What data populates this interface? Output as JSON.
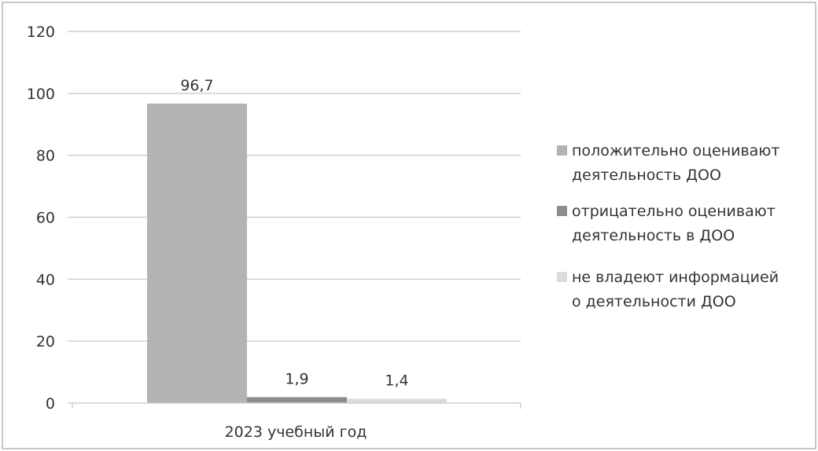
{
  "chart_data": {
    "type": "bar",
    "categories": [
      "2023 учебный год"
    ],
    "series": [
      {
        "name": "положительно оценивают деятельность ДОО",
        "legend_lines": [
          "положительно оценивают",
          "деятельность ДОО"
        ],
        "values": [
          96.7
        ],
        "value_label": "96,7",
        "color": "#b3b3b3"
      },
      {
        "name": "отрицательно оценивают деятельность в ДОО",
        "legend_lines": [
          "отрицательно оценивают",
          "деятельность в ДОО"
        ],
        "values": [
          1.9
        ],
        "value_label": "1,9",
        "color": "#8c8c8c"
      },
      {
        "name": "не владеют информацией о деятельности ДОО",
        "legend_lines": [
          "не владеют информацией",
          "о деятельности ДОО"
        ],
        "values": [
          1.4
        ],
        "value_label": "1,4",
        "color": "#dcdcdc"
      }
    ],
    "y_ticks": [
      0,
      20,
      40,
      60,
      80,
      100,
      120
    ],
    "y_tick_labels": [
      "0",
      "20",
      "40",
      "60",
      "80",
      "100",
      "120"
    ],
    "ylim": [
      0,
      120
    ],
    "grid": true,
    "legend_position": "right",
    "colors": {
      "grid": "#d0d0d0",
      "text": "#333333",
      "frame": "#c8c8c8"
    }
  }
}
